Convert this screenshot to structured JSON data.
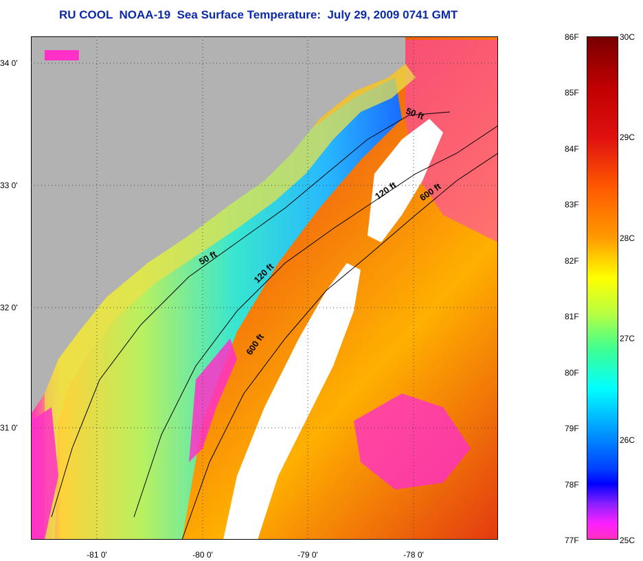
{
  "title": "RU COOL  NOAA-19  Sea Surface Temperature:  July 29, 2009 0741 GMT",
  "map": {
    "land_color": "#b2b2b2",
    "contour_labels": [
      "50 ft",
      "120 ft",
      "600 ft",
      "50 ft",
      "120 ft",
      "600 ft"
    ],
    "lat_labels": [
      "34 0'",
      "33 0'",
      "32 0'",
      "31 0'"
    ],
    "lon_labels": [
      "-81 0'",
      "-80 0'",
      "-79 0'",
      "-78 0'"
    ]
  },
  "colorbar": {
    "fahrenheit_labels": [
      "86F",
      "85F",
      "84F",
      "83F",
      "82F",
      "81F",
      "80F",
      "79F",
      "78F",
      "77F"
    ],
    "celsius_labels": [
      "30C",
      "29C",
      "28C",
      "27C",
      "26C",
      "25C"
    ],
    "range_f": [
      77,
      86
    ],
    "range_c": [
      25,
      30
    ]
  }
}
